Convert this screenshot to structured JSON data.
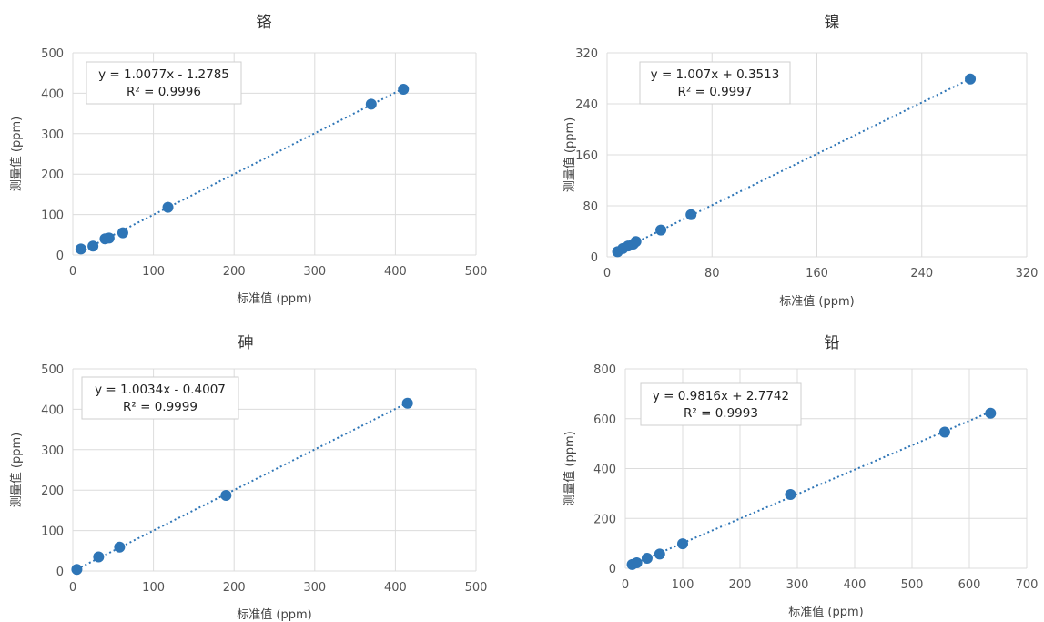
{
  "chart_data": [
    {
      "type": "scatter",
      "title": "铬",
      "xlabel": "标准值 (ppm)",
      "ylabel": "测量值 (ppm)",
      "xlim": [
        0,
        500
      ],
      "ylim": [
        0,
        500
      ],
      "xticks": [
        0,
        100,
        200,
        300,
        400,
        500
      ],
      "yticks": [
        0,
        100,
        200,
        300,
        400,
        500
      ],
      "grid": true,
      "color": "#2E75B6",
      "trendline": {
        "slope": 1.0077,
        "intercept": -1.2785,
        "style": "dotted"
      },
      "equation": "y = 1.0077x - 1.2785",
      "r2_label": "R² = 0.9996",
      "points": [
        {
          "x": 10,
          "y": 15
        },
        {
          "x": 25,
          "y": 22
        },
        {
          "x": 40,
          "y": 40
        },
        {
          "x": 45,
          "y": 42
        },
        {
          "x": 62,
          "y": 55
        },
        {
          "x": 118,
          "y": 118
        },
        {
          "x": 370,
          "y": 373
        },
        {
          "x": 410,
          "y": 410
        }
      ]
    },
    {
      "type": "scatter",
      "title": "镍",
      "xlabel": "标准值 (ppm)",
      "ylabel": "测量值 (ppm)",
      "xlim": [
        0,
        320
      ],
      "ylim": [
        0,
        320
      ],
      "xticks": [
        0,
        80,
        160,
        240,
        320
      ],
      "yticks": [
        0,
        80,
        160,
        240,
        320
      ],
      "grid": true,
      "color": "#2E75B6",
      "trendline": {
        "slope": 1.007,
        "intercept": 0.3513,
        "style": "dotted"
      },
      "equation": "y = 1.007x + 0.3513",
      "r2_label": "R² = 0.9997",
      "points": [
        {
          "x": 8,
          "y": 8
        },
        {
          "x": 12,
          "y": 13
        },
        {
          "x": 16,
          "y": 17
        },
        {
          "x": 20,
          "y": 20
        },
        {
          "x": 22,
          "y": 24
        },
        {
          "x": 41,
          "y": 42
        },
        {
          "x": 64,
          "y": 66
        },
        {
          "x": 277,
          "y": 279
        }
      ]
    },
    {
      "type": "scatter",
      "title": "砷",
      "xlabel": "标准值 (ppm)",
      "ylabel": "测量值 (ppm)",
      "xlim": [
        0,
        500
      ],
      "ylim": [
        0,
        500
      ],
      "xticks": [
        0,
        100,
        200,
        300,
        400,
        500
      ],
      "yticks": [
        0,
        100,
        200,
        300,
        400,
        500
      ],
      "grid": true,
      "color": "#2E75B6",
      "trendline": {
        "slope": 1.0034,
        "intercept": -0.4007,
        "style": "dotted"
      },
      "equation": "y = 1.0034x - 0.4007",
      "r2_label": "R² = 0.9999",
      "points": [
        {
          "x": 5,
          "y": 4
        },
        {
          "x": 32,
          "y": 35
        },
        {
          "x": 58,
          "y": 59
        },
        {
          "x": 190,
          "y": 187
        },
        {
          "x": 415,
          "y": 415
        }
      ]
    },
    {
      "type": "scatter",
      "title": "铅",
      "xlabel": "标准值 (ppm)",
      "ylabel": "测量值 (ppm)",
      "xlim": [
        0,
        700
      ],
      "ylim": [
        0,
        800
      ],
      "xticks": [
        0,
        100,
        200,
        300,
        400,
        500,
        600,
        700
      ],
      "yticks": [
        0,
        200,
        400,
        600,
        800
      ],
      "grid": true,
      "color": "#2E75B6",
      "trendline": {
        "slope": 0.9816,
        "intercept": 2.7742,
        "style": "dotted"
      },
      "equation": "y = 0.9816x + 2.7742",
      "r2_label": "R² = 0.9993",
      "points": [
        {
          "x": 12,
          "y": 15
        },
        {
          "x": 20,
          "y": 22
        },
        {
          "x": 38,
          "y": 40
        },
        {
          "x": 60,
          "y": 57
        },
        {
          "x": 100,
          "y": 98
        },
        {
          "x": 288,
          "y": 296
        },
        {
          "x": 557,
          "y": 546
        },
        {
          "x": 637,
          "y": 622
        }
      ]
    }
  ]
}
